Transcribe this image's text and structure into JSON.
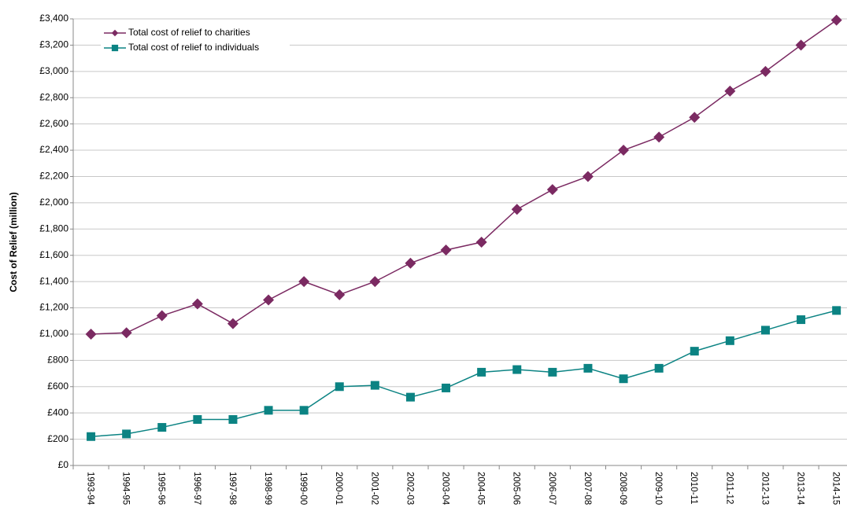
{
  "chart_data": {
    "type": "line",
    "y_label": "Cost of Relief (million)",
    "categories": [
      "1993-94",
      "1994-95",
      "1995-96",
      "1996-97",
      "1997-98",
      "1998-99",
      "1999-00",
      "2000-01",
      "2001-02",
      "2002-03",
      "2003-04",
      "2004-05",
      "2005-06",
      "2006-07",
      "2007-08",
      "2008-09",
      "2009-10",
      "2010-11",
      "2011-12",
      "2012-13",
      "2013-14",
      "2014-15"
    ],
    "series": [
      {
        "name": "Total cost of relief to charities",
        "color": "#7b2a62",
        "marker": "diamond",
        "values": [
          1000,
          1010,
          1140,
          1230,
          1080,
          1260,
          1400,
          1300,
          1400,
          1540,
          1640,
          1700,
          1950,
          2100,
          2200,
          2400,
          2500,
          2650,
          2850,
          3000,
          3200,
          3390
        ]
      },
      {
        "name": "Total cost of relief to individuals",
        "color": "#0b8383",
        "marker": "square",
        "values": [
          220,
          240,
          290,
          350,
          350,
          420,
          420,
          600,
          610,
          520,
          590,
          710,
          730,
          710,
          740,
          660,
          740,
          870,
          950,
          1030,
          1110,
          1180
        ]
      }
    ],
    "ylim": [
      0,
      3400
    ],
    "yticks": [
      {
        "value": 0,
        "label": "£0"
      },
      {
        "value": 200,
        "label": "£200"
      },
      {
        "value": 400,
        "label": "£400"
      },
      {
        "value": 600,
        "label": "£600"
      },
      {
        "value": 800,
        "label": "£800"
      },
      {
        "value": 1000,
        "label": "£1,000"
      },
      {
        "value": 1200,
        "label": "£1,200"
      },
      {
        "value": 1400,
        "label": "£1,400"
      },
      {
        "value": 1600,
        "label": "£1,600"
      },
      {
        "value": 1800,
        "label": "£1,800"
      },
      {
        "value": 2000,
        "label": "£2,000"
      },
      {
        "value": 2200,
        "label": "£2,200"
      },
      {
        "value": 2400,
        "label": "£2,400"
      },
      {
        "value": 2600,
        "label": "£2,600"
      },
      {
        "value": 2800,
        "label": "£2,800"
      },
      {
        "value": 3000,
        "label": "£3,000"
      },
      {
        "value": 3200,
        "label": "£3,200"
      },
      {
        "value": 3400,
        "label": "£3,400"
      }
    ],
    "grid": true,
    "legend": "top-left"
  }
}
